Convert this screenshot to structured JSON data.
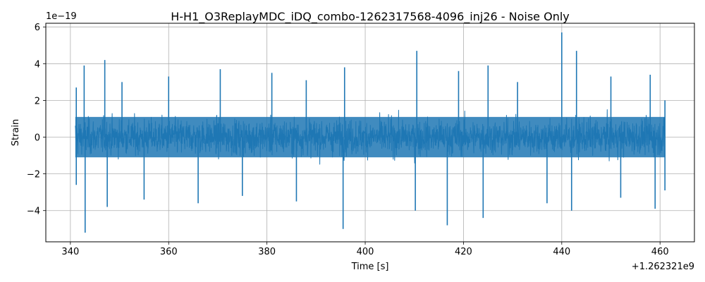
{
  "chart_data": {
    "type": "line",
    "title": "H-H1_O3ReplayMDC_iDQ_combo-1262317568-4096_inj26 - Noise Only",
    "xlabel": "Time [s]",
    "ylabel": "Strain",
    "x_offset_label": "+1.262321e9",
    "y_scale_label": "1e−19",
    "xlim": [
      335.0,
      467.0
    ],
    "ylim": [
      -5.7,
      6.2
    ],
    "x_ticks": [
      340,
      360,
      380,
      400,
      420,
      440,
      460
    ],
    "x_tick_labels": [
      "340",
      "360",
      "380",
      "400",
      "420",
      "440",
      "460"
    ],
    "y_ticks": [
      -4,
      -2,
      0,
      2,
      4,
      6
    ],
    "y_tick_labels": [
      "−4",
      "−2",
      "0",
      "2",
      "4",
      "6"
    ],
    "grid": true,
    "series": [
      {
        "color": "#1f77b4",
        "x_start": 341.0,
        "x_end": 461.0,
        "typical_envelope": [
          -2.4,
          2.4
        ],
        "peaks": [
          {
            "x": 341.2,
            "y": 2.7
          },
          {
            "x": 342.8,
            "y": 3.9
          },
          {
            "x": 347.0,
            "y": 4.2
          },
          {
            "x": 350.5,
            "y": 3.0
          },
          {
            "x": 360.0,
            "y": 3.3
          },
          {
            "x": 370.5,
            "y": 3.7
          },
          {
            "x": 381.0,
            "y": 3.5
          },
          {
            "x": 388.0,
            "y": 3.1
          },
          {
            "x": 395.8,
            "y": 3.8
          },
          {
            "x": 410.5,
            "y": 4.7
          },
          {
            "x": 419.0,
            "y": 3.6
          },
          {
            "x": 425.0,
            "y": 3.9
          },
          {
            "x": 431.0,
            "y": 3.0
          },
          {
            "x": 440.0,
            "y": 5.7
          },
          {
            "x": 443.0,
            "y": 4.7
          },
          {
            "x": 450.0,
            "y": 3.3
          },
          {
            "x": 458.0,
            "y": 3.4
          },
          {
            "x": 461.0,
            "y": 2.0
          }
        ],
        "troughs": [
          {
            "x": 341.2,
            "y": -2.6
          },
          {
            "x": 343.0,
            "y": -5.2
          },
          {
            "x": 347.5,
            "y": -3.8
          },
          {
            "x": 355.0,
            "y": -3.4
          },
          {
            "x": 366.0,
            "y": -3.6
          },
          {
            "x": 375.0,
            "y": -3.2
          },
          {
            "x": 386.0,
            "y": -3.5
          },
          {
            "x": 395.5,
            "y": -5.0
          },
          {
            "x": 410.2,
            "y": -4.0
          },
          {
            "x": 416.7,
            "y": -4.8
          },
          {
            "x": 424.0,
            "y": -4.4
          },
          {
            "x": 437.0,
            "y": -3.6
          },
          {
            "x": 442.0,
            "y": -4.0
          },
          {
            "x": 452.0,
            "y": -3.3
          },
          {
            "x": 459.0,
            "y": -3.9
          },
          {
            "x": 461.0,
            "y": -2.9
          }
        ]
      }
    ]
  }
}
